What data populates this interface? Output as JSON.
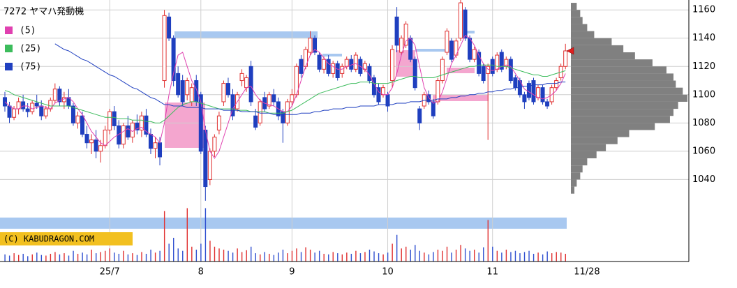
{
  "chart_data": {
    "type": "candlestick",
    "title": "7272 ヤマハ発動機",
    "watermark": "(C) KABUDRAGON.COM",
    "ylim": [
      982,
      1167
    ],
    "yticks": [
      1040,
      1060,
      1080,
      1100,
      1120,
      1140,
      1160
    ],
    "grid": true,
    "up_color": "#e03030",
    "down_color": "#1f3fbf",
    "categories": [
      null,
      null,
      null,
      null,
      null,
      null,
      null,
      null,
      null,
      null,
      null,
      null,
      null,
      null,
      null,
      null,
      null,
      null,
      null,
      null,
      null,
      null,
      null,
      "25/7",
      null,
      null,
      null,
      null,
      null,
      null,
      null,
      null,
      null,
      null,
      null,
      null,
      null,
      null,
      null,
      null,
      null,
      null,
      null,
      "8",
      null,
      null,
      null,
      null,
      null,
      null,
      null,
      null,
      null,
      null,
      null,
      null,
      null,
      null,
      null,
      null,
      null,
      null,
      null,
      "9",
      null,
      null,
      null,
      null,
      null,
      null,
      null,
      null,
      null,
      null,
      null,
      null,
      null,
      null,
      null,
      null,
      null,
      null,
      null,
      null,
      "10",
      null,
      null,
      null,
      null,
      null,
      null,
      null,
      null,
      null,
      null,
      null,
      null,
      null,
      null,
      null,
      null,
      null,
      null,
      null,
      null,
      null,
      null,
      "11",
      null,
      null,
      null,
      null,
      null,
      null,
      null,
      null,
      null,
      null,
      null,
      null,
      null,
      null,
      null,
      "11/28"
    ],
    "ohlc": [
      [
        1098,
        1102,
        1088,
        1092
      ],
      [
        1092,
        1095,
        1080,
        1084
      ],
      [
        1084,
        1092,
        1082,
        1090
      ],
      [
        1090,
        1098,
        1086,
        1095
      ],
      [
        1095,
        1100,
        1088,
        1090
      ],
      [
        1090,
        1094,
        1084,
        1088
      ],
      [
        1088,
        1096,
        1086,
        1094
      ],
      [
        1094,
        1100,
        1090,
        1092
      ],
      [
        1092,
        1096,
        1082,
        1085
      ],
      [
        1085,
        1092,
        1083,
        1090
      ],
      [
        1090,
        1098,
        1088,
        1096
      ],
      [
        1096,
        1108,
        1094,
        1104
      ],
      [
        1104,
        1106,
        1092,
        1095
      ],
      [
        1095,
        1102,
        1090,
        1098
      ],
      [
        1098,
        1104,
        1090,
        1092
      ],
      [
        1092,
        1094,
        1078,
        1080
      ],
      [
        1080,
        1088,
        1076,
        1085
      ],
      [
        1085,
        1088,
        1070,
        1072
      ],
      [
        1072,
        1078,
        1062,
        1066
      ],
      [
        1066,
        1072,
        1058,
        1068
      ],
      [
        1068,
        1075,
        1055,
        1060
      ],
      [
        1060,
        1068,
        1052,
        1064
      ],
      [
        1064,
        1078,
        1062,
        1075
      ],
      [
        1075,
        1090,
        1072,
        1088
      ],
      [
        1088,
        1092,
        1075,
        1078
      ],
      [
        1078,
        1082,
        1062,
        1065
      ],
      [
        1065,
        1080,
        1062,
        1078
      ],
      [
        1078,
        1085,
        1068,
        1070
      ],
      [
        1070,
        1082,
        1066,
        1080
      ],
      [
        1080,
        1086,
        1072,
        1075
      ],
      [
        1075,
        1088,
        1070,
        1085
      ],
      [
        1085,
        1090,
        1070,
        1072
      ],
      [
        1072,
        1076,
        1058,
        1062
      ],
      [
        1062,
        1070,
        1055,
        1066
      ],
      [
        1066,
        1070,
        1050,
        1056
      ],
      [
        1110,
        1160,
        1105,
        1156
      ],
      [
        1155,
        1158,
        1138,
        1140
      ],
      [
        1140,
        1142,
        1106,
        1110
      ],
      [
        1115,
        1120,
        1098,
        1100
      ],
      [
        1110,
        1114,
        1092,
        1095
      ],
      [
        1100,
        1112,
        1096,
        1110
      ],
      [
        1095,
        1108,
        1092,
        1105
      ],
      [
        1110,
        1114,
        1092,
        1095
      ],
      [
        1100,
        1102,
        1058,
        1060
      ],
      [
        1075,
        1078,
        1025,
        1035
      ],
      [
        1040,
        1062,
        1036,
        1060
      ],
      [
        1060,
        1072,
        1056,
        1070
      ],
      [
        1075,
        1088,
        1072,
        1085
      ],
      [
        1095,
        1110,
        1092,
        1108
      ],
      [
        1108,
        1112,
        1098,
        1100
      ],
      [
        1100,
        1104,
        1082,
        1085
      ],
      [
        1090,
        1102,
        1088,
        1100
      ],
      [
        1110,
        1118,
        1106,
        1115
      ],
      [
        1105,
        1114,
        1102,
        1112
      ],
      [
        1120,
        1124,
        1092,
        1095
      ],
      [
        1085,
        1090,
        1075,
        1077
      ],
      [
        1080,
        1097,
        1078,
        1095
      ],
      [
        1098,
        1102,
        1088,
        1090
      ],
      [
        1092,
        1102,
        1090,
        1100
      ],
      [
        1100,
        1104,
        1092,
        1095
      ],
      [
        1095,
        1098,
        1082,
        1085
      ],
      [
        1088,
        1090,
        1066,
        1080
      ],
      [
        1080,
        1097,
        1078,
        1095
      ],
      [
        1095,
        1104,
        1092,
        1100
      ],
      [
        1100,
        1122,
        1098,
        1120
      ],
      [
        1125,
        1128,
        1112,
        1115
      ],
      [
        1120,
        1134,
        1118,
        1132
      ],
      [
        1130,
        1145,
        1128,
        1140
      ],
      [
        1140,
        1142,
        1128,
        1130
      ],
      [
        1128,
        1130,
        1116,
        1118
      ],
      [
        1118,
        1127,
        1115,
        1125
      ],
      [
        1125,
        1128,
        1113,
        1115
      ],
      [
        1115,
        1124,
        1112,
        1122
      ],
      [
        1122,
        1124,
        1110,
        1112
      ],
      [
        1115,
        1122,
        1112,
        1120
      ],
      [
        1120,
        1127,
        1118,
        1125
      ],
      [
        1125,
        1128,
        1116,
        1118
      ],
      [
        1118,
        1130,
        1116,
        1128
      ],
      [
        1125,
        1127,
        1113,
        1115
      ],
      [
        1118,
        1124,
        1116,
        1122
      ],
      [
        1120,
        1122,
        1108,
        1110
      ],
      [
        1112,
        1114,
        1098,
        1100
      ],
      [
        1105,
        1108,
        1093,
        1095
      ],
      [
        1100,
        1107,
        1098,
        1105
      ],
      [
        1100,
        1102,
        1088,
        1092
      ],
      [
        1110,
        1135,
        1105,
        1132
      ],
      [
        1155,
        1162,
        1130,
        1135
      ],
      [
        1130,
        1142,
        1128,
        1140
      ],
      [
        1135,
        1152,
        1133,
        1150
      ],
      [
        1140,
        1142,
        1123,
        1125
      ],
      [
        1125,
        1127,
        1103,
        1105
      ],
      [
        1090,
        1092,
        1075,
        1080
      ],
      [
        1092,
        1102,
        1090,
        1100
      ],
      [
        1100,
        1103,
        1093,
        1095
      ],
      [
        1095,
        1097,
        1083,
        1085
      ],
      [
        1095,
        1112,
        1093,
        1110
      ],
      [
        1110,
        1127,
        1108,
        1125
      ],
      [
        1130,
        1147,
        1128,
        1145
      ],
      [
        1138,
        1140,
        1123,
        1125
      ],
      [
        1128,
        1140,
        1126,
        1138
      ],
      [
        1140,
        1167,
        1138,
        1165
      ],
      [
        1160,
        1162,
        1138,
        1140
      ],
      [
        1140,
        1142,
        1123,
        1125
      ],
      [
        1125,
        1134,
        1123,
        1132
      ],
      [
        1130,
        1132,
        1113,
        1115
      ],
      [
        1120,
        1122,
        1108,
        1110
      ],
      [
        1115,
        1122,
        1068,
        1120
      ],
      [
        1125,
        1127,
        1113,
        1115
      ],
      [
        1118,
        1130,
        1116,
        1128
      ],
      [
        1130,
        1132,
        1116,
        1118
      ],
      [
        1120,
        1127,
        1118,
        1125
      ],
      [
        1125,
        1127,
        1108,
        1110
      ],
      [
        1112,
        1114,
        1103,
        1105
      ],
      [
        1110,
        1112,
        1098,
        1100
      ],
      [
        1100,
        1102,
        1090,
        1095
      ],
      [
        1108,
        1110,
        1096,
        1098
      ],
      [
        1110,
        1112,
        1093,
        1095
      ],
      [
        1098,
        1107,
        1096,
        1105
      ],
      [
        1105,
        1107,
        1093,
        1095
      ],
      [
        1095,
        1097,
        1090,
        1092
      ],
      [
        1095,
        1107,
        1093,
        1105
      ],
      [
        1105,
        1112,
        1103,
        1110
      ],
      [
        1112,
        1122,
        1110,
        1120
      ],
      [
        1120,
        1136,
        1118,
        1131
      ]
    ],
    "series": [
      {
        "name": "(5)",
        "color": "#e040b0",
        "values": [
          1095,
          1092,
          1090,
          1090,
          1092,
          1092,
          1090,
          1091,
          1092,
          1091,
          1090,
          1094,
          1096,
          1097,
          1098,
          1095,
          1090,
          1086,
          1080,
          1074,
          1070,
          1066,
          1064,
          1067,
          1070,
          1072,
          1074,
          1076,
          1074,
          1076,
          1077,
          1074,
          1072,
          1070,
          1066,
          1080,
          1100,
          1115,
          1128,
          1130,
          1120,
          1110,
          1104,
          1095,
          1075,
          1060,
          1055,
          1060,
          1070,
          1080,
          1090,
          1095,
          1100,
          1105,
          1106,
          1100,
          1096,
          1094,
          1093,
          1092,
          1090,
          1088,
          1088,
          1092,
          1100,
          1110,
          1120,
          1128,
          1132,
          1130,
          1126,
          1122,
          1120,
          1118,
          1118,
          1120,
          1121,
          1122,
          1120,
          1118,
          1114,
          1108,
          1102,
          1100,
          1100,
          1105,
          1115,
          1128,
          1138,
          1140,
          1135,
          1120,
          1105,
          1098,
          1094,
          1095,
          1102,
          1112,
          1122,
          1128,
          1135,
          1142,
          1140,
          1135,
          1128,
          1122,
          1118,
          1117,
          1118,
          1120,
          1121,
          1120,
          1115,
          1110,
          1104,
          1102,
          1100,
          1098,
          1097,
          1098,
          1100,
          1103,
          1108,
          1115
        ]
      },
      {
        "name": "(25)",
        "color": "#3cbc5c",
        "values": [
          1103,
          1102,
          1100,
          1099,
          1098,
          1097,
          1096,
          1095,
          1094,
          1093,
          1092,
          1092,
          1092,
          1092,
          1092,
          1091,
          1090,
          1089,
          1088,
          1087,
          1086,
          1085,
          1084,
          1084,
          1084,
          1083,
          1083,
          1083,
          1082,
          1082,
          1082,
          1081,
          1081,
          1080,
          1080,
          1082,
          1085,
          1088,
          1091,
          1093,
          1094,
          1095,
          1095,
          1094,
          1093,
          1092,
          1091,
          1090,
          1090,
          1090,
          1090,
          1089,
          1089,
          1089,
          1088,
          1088,
          1088,
          1088,
          1087,
          1087,
          1087,
          1087,
          1088,
          1089,
          1091,
          1093,
          1095,
          1097,
          1099,
          1101,
          1102,
          1103,
          1104,
          1105,
          1106,
          1107,
          1108,
          1108,
          1109,
          1109,
          1109,
          1108,
          1108,
          1108,
          1108,
          1109,
          1110,
          1111,
          1112,
          1113,
          1113,
          1112,
          1112,
          1112,
          1112,
          1113,
          1114,
          1115,
          1116,
          1117,
          1118,
          1119,
          1120,
          1120,
          1121,
          1121,
          1121,
          1121,
          1120,
          1120,
          1120,
          1119,
          1118,
          1117,
          1116,
          1115,
          1114,
          1114,
          1113,
          1113,
          1114,
          1115,
          1116,
          1117
        ]
      },
      {
        "name": "(75)",
        "color": "#2040c0",
        "values": [
          null,
          null,
          null,
          null,
          null,
          null,
          null,
          null,
          null,
          null,
          null,
          1136,
          1134,
          1132,
          1131,
          1129,
          1127,
          1125,
          1124,
          1122,
          1120,
          1118,
          1116,
          1114,
          1113,
          1111,
          1109,
          1107,
          1105,
          1104,
          1102,
          1100,
          1098,
          1097,
          1095,
          1093,
          1093,
          1092,
          1092,
          1092,
          1091,
          1091,
          1091,
          1091,
          1090,
          1090,
          1090,
          1090,
          1089,
          1089,
          1089,
          1089,
          1088,
          1088,
          1088,
          1088,
          1087,
          1087,
          1087,
          1086,
          1086,
          1086,
          1086,
          1086,
          1086,
          1087,
          1087,
          1087,
          1088,
          1088,
          1089,
          1089,
          1090,
          1090,
          1090,
          1091,
          1091,
          1091,
          1092,
          1092,
          1092,
          1092,
          1093,
          1093,
          1093,
          1093,
          1094,
          1094,
          1094,
          1095,
          1095,
          1095,
          1096,
          1096,
          1096,
          1097,
          1097,
          1097,
          1098,
          1098,
          1099,
          1099,
          1100,
          1100,
          1101,
          1101,
          1102,
          1102,
          1103,
          1103,
          1104,
          1104,
          1105,
          1105,
          1106,
          1106,
          1107,
          1107,
          1107,
          1108,
          1108,
          1108,
          1109,
          1109
        ]
      }
    ],
    "volume": [
      12,
      10,
      14,
      11,
      13,
      9,
      12,
      15,
      11,
      10,
      13,
      16,
      12,
      14,
      10,
      18,
      13,
      15,
      12,
      20,
      14,
      16,
      18,
      22,
      15,
      13,
      18,
      12,
      14,
      11,
      16,
      13,
      20,
      15,
      18,
      85,
      30,
      40,
      22,
      18,
      90,
      25,
      20,
      30,
      90,
      35,
      25,
      22,
      20,
      18,
      15,
      22,
      16,
      19,
      25,
      14,
      12,
      16,
      13,
      11,
      15,
      20,
      14,
      18,
      22,
      16,
      24,
      20,
      15,
      18,
      13,
      12,
      16,
      14,
      12,
      15,
      13,
      18,
      14,
      16,
      20,
      17,
      14,
      12,
      15,
      30,
      45,
      22,
      25,
      20,
      28,
      18,
      15,
      12,
      16,
      20,
      18,
      25,
      15,
      20,
      28,
      22,
      18,
      20,
      15,
      24,
      70,
      25,
      18,
      15,
      20,
      16,
      18,
      14,
      16,
      18,
      13,
      15,
      12,
      17,
      14,
      16,
      15,
      13
    ],
    "volume_lim": [
      0,
      100
    ],
    "profile": {
      "color": "#808080",
      "xlim": [
        0,
        100
      ],
      "bins": [
        1030,
        1035,
        1040,
        1045,
        1050,
        1055,
        1060,
        1065,
        1070,
        1075,
        1080,
        1085,
        1090,
        1095,
        1100,
        1105,
        1110,
        1115,
        1120,
        1125,
        1130,
        1135,
        1140,
        1145,
        1150,
        1155,
        1160,
        1165
      ],
      "values": [
        3,
        5,
        8,
        10,
        14,
        22,
        30,
        40,
        50,
        72,
        85,
        88,
        92,
        100,
        96,
        90,
        88,
        82,
        70,
        55,
        45,
        35,
        20,
        14,
        10,
        8,
        5
      ]
    }
  }
}
